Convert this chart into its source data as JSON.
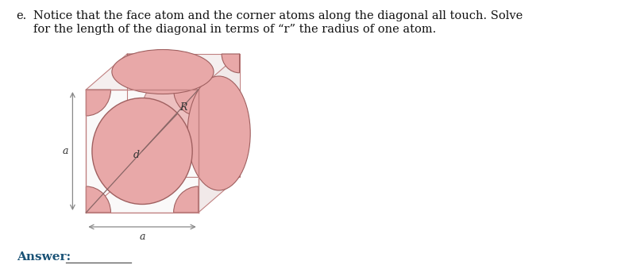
{
  "background_color": "#ffffff",
  "question_label": "e.",
  "question_text_line1": "Notice that the face atom and the corner atoms along the diagonal all touch. Solve",
  "question_text_line2": "for the length of the diagonal in terms of “r” the radius of one atom.",
  "answer_label": "Answer:",
  "atom_color": "#e8a8a8",
  "atom_color2": "#d49090",
  "atom_edge_color": "#a06060",
  "cube_fill": "#f0e8e8",
  "cube_line_color": "#c08080",
  "dim_arrow_color": "#888888",
  "label_color": "#333333",
  "font_family": "serif"
}
